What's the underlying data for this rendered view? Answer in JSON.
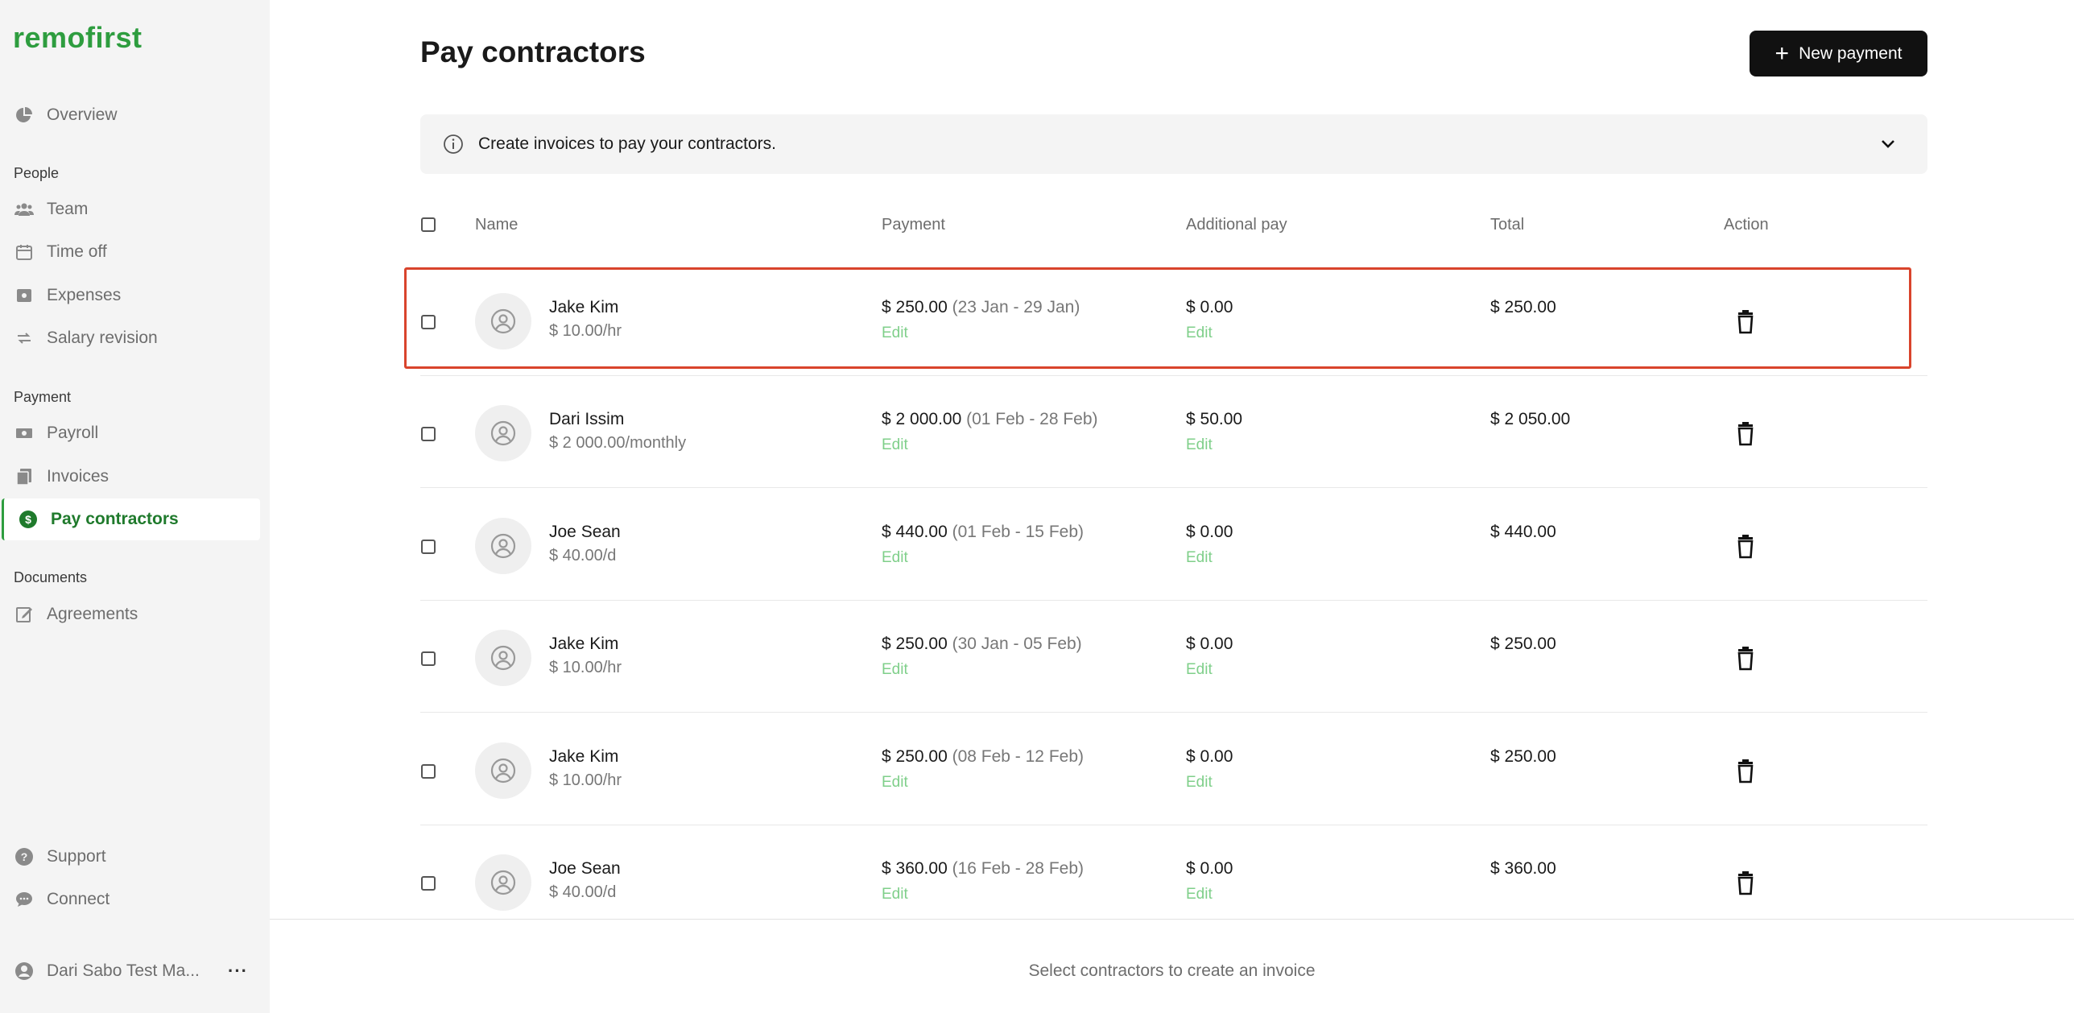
{
  "app": {
    "logo": "remofirst"
  },
  "sidebar": {
    "overview": "Overview",
    "sections": {
      "people": "People",
      "payment": "Payment",
      "documents": "Documents"
    },
    "people_items": [
      "Team",
      "Time off",
      "Expenses",
      "Salary revision"
    ],
    "payment_items": [
      "Payroll",
      "Invoices",
      "Pay contractors"
    ],
    "document_items": [
      "Agreements"
    ],
    "support": "Support",
    "connect": "Connect",
    "user_name": "Dari Sabo Test Ma...",
    "active_item": "Pay contractors"
  },
  "header": {
    "title": "Pay contractors",
    "new_payment_label": "New payment"
  },
  "banner": {
    "text": "Create invoices to pay your contractors."
  },
  "table": {
    "columns": {
      "name": "Name",
      "payment": "Payment",
      "additional": "Additional pay",
      "total": "Total",
      "action": "Action"
    },
    "rows": [
      {
        "name": "Jake Kim",
        "rate": "$ 10.00/hr",
        "payment": "$ 250.00",
        "period": "(23 Jan - 29 Jan)",
        "pay_edit": "Edit",
        "additional": "$ 0.00",
        "add_edit": "Edit",
        "total": "$ 250.00"
      },
      {
        "name": "Dari Issim",
        "rate": "$ 2 000.00/monthly",
        "payment": "$ 2 000.00",
        "period": "(01 Feb - 28 Feb)",
        "pay_edit": "Edit",
        "additional": "$ 50.00",
        "add_edit": "Edit",
        "total": "$ 2 050.00"
      },
      {
        "name": "Joe Sean",
        "rate": "$ 40.00/d",
        "payment": "$ 440.00",
        "period": "(01 Feb - 15 Feb)",
        "pay_edit": "Edit",
        "additional": "$ 0.00",
        "add_edit": "Edit",
        "total": "$ 440.00"
      },
      {
        "name": "Jake Kim",
        "rate": "$ 10.00/hr",
        "payment": "$ 250.00",
        "period": "(30 Jan - 05 Feb)",
        "pay_edit": "Edit",
        "additional": "$ 0.00",
        "add_edit": "Edit",
        "total": "$ 250.00"
      },
      {
        "name": "Jake Kim",
        "rate": "$ 10.00/hr",
        "payment": "$ 250.00",
        "period": "(08 Feb - 12 Feb)",
        "pay_edit": "Edit",
        "additional": "$ 0.00",
        "add_edit": "Edit",
        "total": "$ 250.00"
      },
      {
        "name": "Joe Sean",
        "rate": "$ 40.00/d",
        "payment": "$ 360.00",
        "period": "(16 Feb - 28 Feb)",
        "pay_edit": "Edit",
        "additional": "$ 0.00",
        "add_edit": "Edit",
        "total": "$ 360.00"
      }
    ]
  },
  "footer": {
    "hint": "Select contractors to create an invoice"
  },
  "colors": {
    "brand": "#2e9d3f",
    "edit_link": "#7fcf8a",
    "highlight": "#d9442c",
    "button": "#111111"
  }
}
